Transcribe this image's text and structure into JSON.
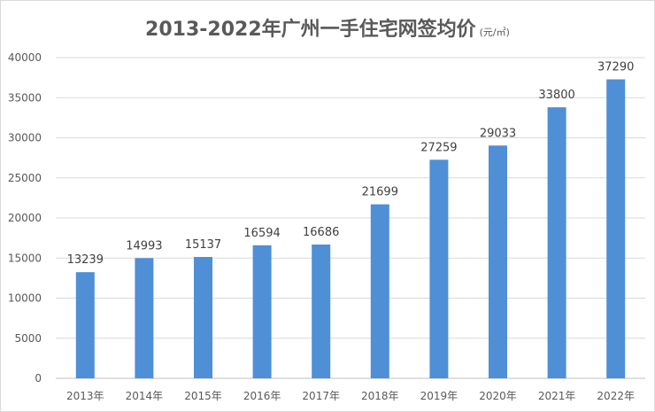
{
  "chart_data": {
    "type": "bar",
    "title": "2013-2022年广州一手住宅网签均价",
    "unit": "(元/㎡)",
    "categories": [
      "2013年",
      "2014年",
      "2015年",
      "2016年",
      "2017年",
      "2018年",
      "2019年",
      "2020年",
      "2021年",
      "2022年"
    ],
    "values": [
      13239,
      14993,
      15137,
      16594,
      16686,
      21699,
      27259,
      29033,
      33800,
      37290
    ],
    "ylim": [
      0,
      40000
    ],
    "yticks": [
      0,
      5000,
      10000,
      15000,
      20000,
      25000,
      30000,
      35000,
      40000
    ],
    "grid": true,
    "legend": "none",
    "colors": {
      "bar": "#4f8fd6",
      "grid": "#d9d9d9",
      "axis": "#bfbfbf"
    }
  }
}
